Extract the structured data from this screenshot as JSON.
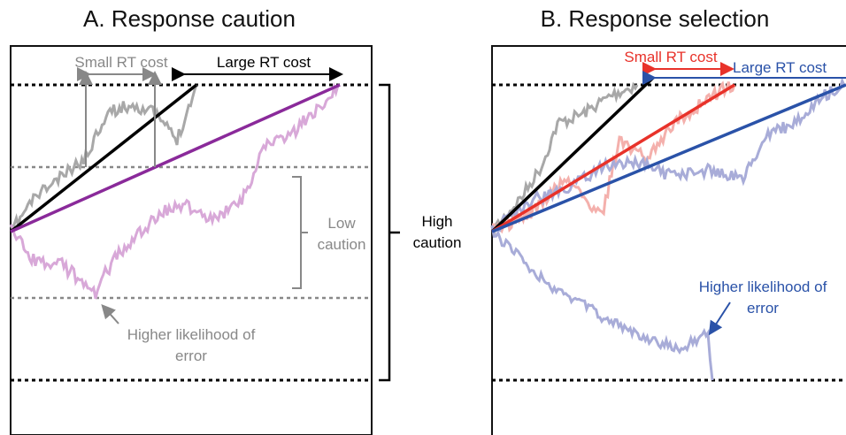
{
  "panel_a": {
    "title": "A. Response caution",
    "small_rt_cost": "Small RT cost",
    "large_rt_cost": "Large RT cost",
    "low_caution_1": "Low",
    "low_caution_2": "caution",
    "error_1": "Higher likelihood of",
    "error_2": "error"
  },
  "center": {
    "high_caution_1": "High",
    "high_caution_2": "caution"
  },
  "panel_b": {
    "title": "B. Response selection",
    "small_rt_cost": "Small RT cost",
    "large_rt_cost": "Large RT cost",
    "error_1": "Higher likelihood of",
    "error_2": "error"
  },
  "colors": {
    "gray_trace": "#a8a8a8",
    "purple_trace": "#d8a8d8",
    "purple_line": "#8a2a9a",
    "red_line": "#e8322a",
    "red_trace": "#f4b0ac",
    "blue_line": "#2a52a8",
    "blue_trace": "#a8acd8",
    "black": "#000000",
    "gray_text": "#888888"
  }
}
